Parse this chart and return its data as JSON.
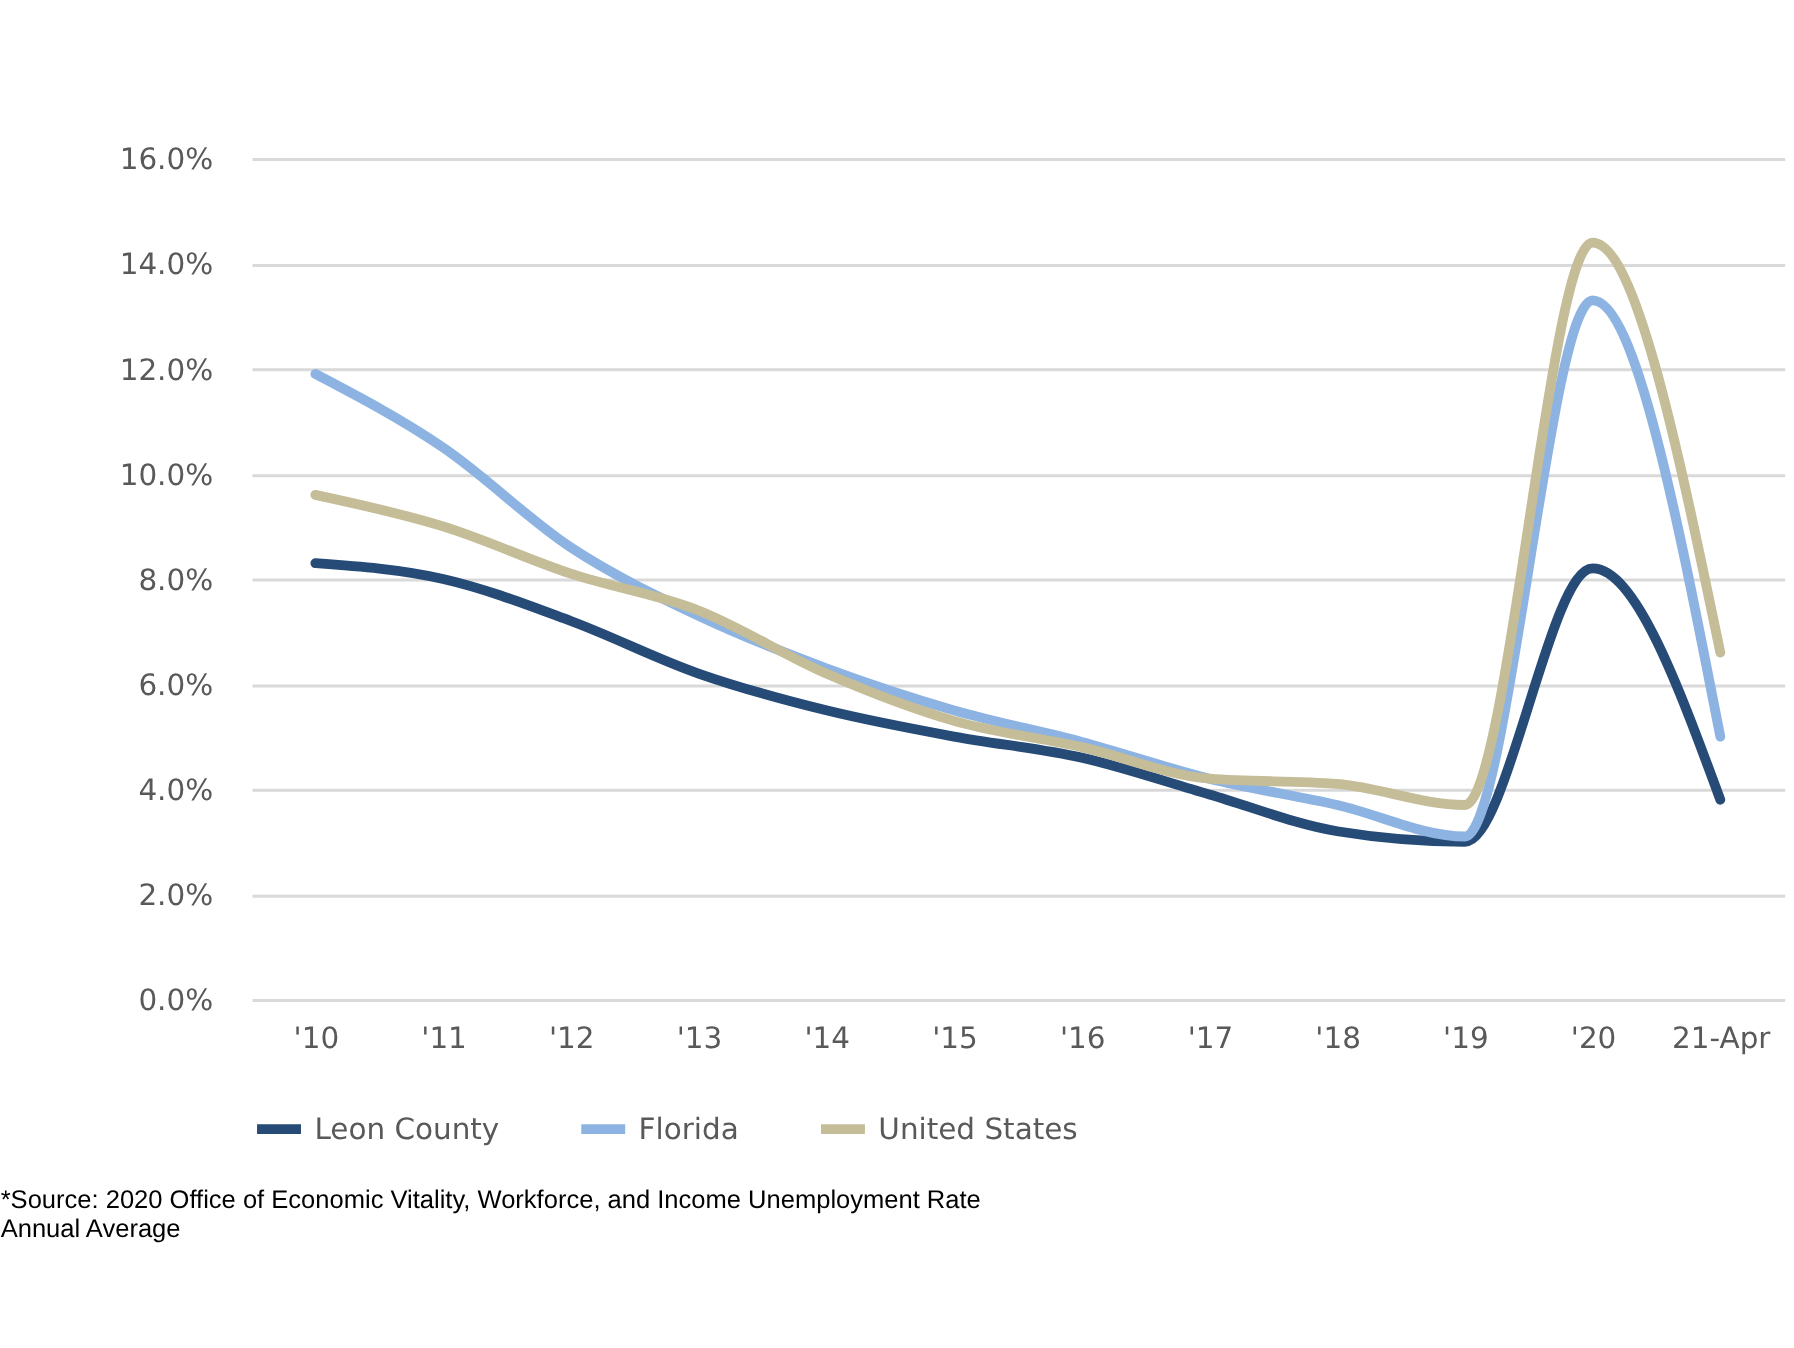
{
  "chart_data": {
    "type": "line",
    "categories": [
      "'10",
      "'11",
      "'12",
      "'13",
      "'14",
      "'15",
      "'16",
      "'17",
      "'18",
      "'19",
      "'20",
      "21-Apr"
    ],
    "series": [
      {
        "name": "Leon County",
        "color": "#264b77",
        "values": [
          8.3,
          8.0,
          7.2,
          6.2,
          5.5,
          5.0,
          4.6,
          3.9,
          3.2,
          3.0,
          8.2,
          3.8
        ]
      },
      {
        "name": "Florida",
        "color": "#8db3e2",
        "values": [
          11.9,
          10.5,
          8.6,
          7.3,
          6.3,
          5.5,
          4.9,
          4.2,
          3.7,
          3.1,
          13.3,
          5.0
        ]
      },
      {
        "name": "United States",
        "color": "#c4bd97",
        "values": [
          9.6,
          9.0,
          8.1,
          7.4,
          6.2,
          5.3,
          4.8,
          4.2,
          4.1,
          3.7,
          14.4,
          6.6
        ]
      }
    ],
    "ylim": [
      0,
      16
    ],
    "yticks": [
      {
        "value": 0,
        "label": "0.0%"
      },
      {
        "value": 2,
        "label": "2.0%"
      },
      {
        "value": 4,
        "label": "4.0%"
      },
      {
        "value": 6,
        "label": "6.0%"
      },
      {
        "value": 8,
        "label": "8.0%"
      },
      {
        "value": 10,
        "label": "10.0%"
      },
      {
        "value": 12,
        "label": "12.0%"
      },
      {
        "value": 14,
        "label": "14.0%"
      },
      {
        "value": 16,
        "label": "16.0%"
      }
    ],
    "grid": "y",
    "legend": "bottom",
    "marker": "none",
    "line_style": "solid",
    "annotations": [
      "*Source: 2020 Office of Economic Vitality, Workforce, and Income Unemployment Rate Annual Average"
    ]
  }
}
